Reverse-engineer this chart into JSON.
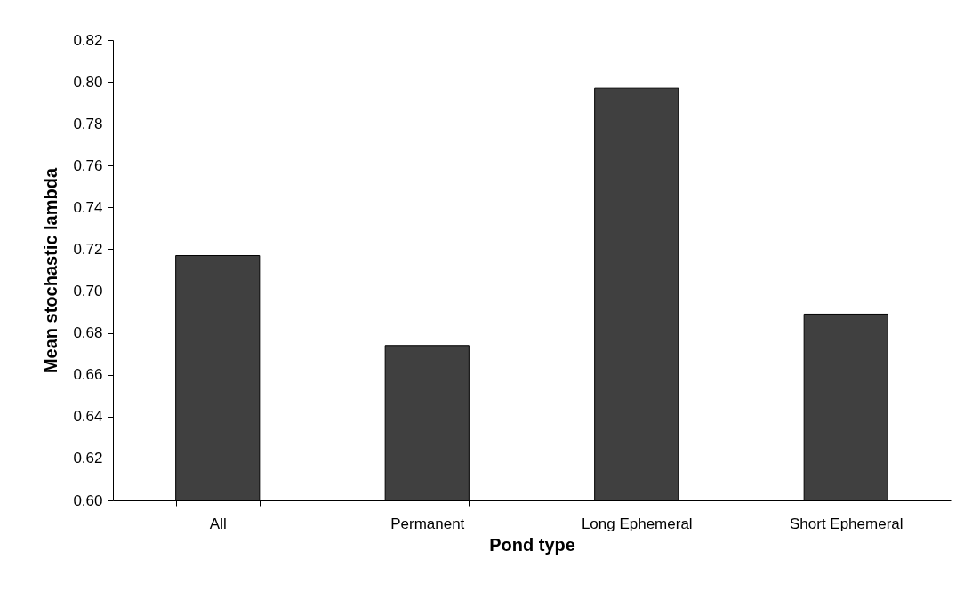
{
  "chart_data": {
    "type": "bar",
    "xlabel": "Pond type",
    "ylabel": "Mean stochastic lambda",
    "categories": [
      "All",
      "Permanent",
      "Long Ephemeral",
      "Short Ephemeral"
    ],
    "values": [
      0.717,
      0.674,
      0.797,
      0.689
    ],
    "color": "#404040",
    "ylim": [
      0.6,
      0.82
    ],
    "yticks": [
      {
        "value": 0.6,
        "label": "0.60"
      },
      {
        "value": 0.62,
        "label": "0.62"
      },
      {
        "value": 0.64,
        "label": "0.64"
      },
      {
        "value": 0.66,
        "label": "0.66"
      },
      {
        "value": 0.68,
        "label": "0.68"
      },
      {
        "value": 0.7,
        "label": "0.70"
      },
      {
        "value": 0.72,
        "label": "0.72"
      },
      {
        "value": 0.74,
        "label": "0.74"
      },
      {
        "value": 0.76,
        "label": "0.76"
      },
      {
        "value": 0.78,
        "label": "0.78"
      },
      {
        "value": 0.8,
        "label": "0.80"
      },
      {
        "value": 0.82,
        "label": "0.82"
      }
    ],
    "grid": false
  }
}
